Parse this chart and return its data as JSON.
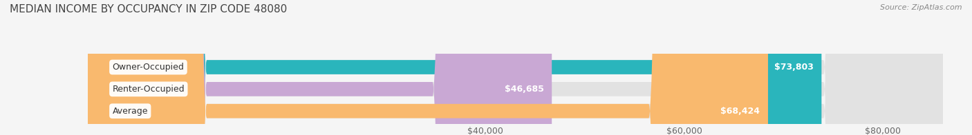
{
  "title": "MEDIAN INCOME BY OCCUPANCY IN ZIP CODE 48080",
  "source": "Source: ZipAtlas.com",
  "categories": [
    "Owner-Occupied",
    "Renter-Occupied",
    "Average"
  ],
  "values": [
    73803,
    46685,
    68424
  ],
  "bar_colors": [
    "#2ab5bc",
    "#c9a8d4",
    "#f9b96e"
  ],
  "bar_labels": [
    "$73,803",
    "$46,685",
    "$68,424"
  ],
  "xlim": [
    0,
    86000
  ],
  "xticks": [
    40000,
    60000,
    80000
  ],
  "xticklabels": [
    "$40,000",
    "$60,000",
    "$80,000"
  ],
  "bg_color": "#f5f5f5",
  "bar_bg_color": "#e2e2e2",
  "title_fontsize": 11,
  "source_fontsize": 8,
  "label_fontsize": 9,
  "tick_fontsize": 9,
  "cat_fontsize": 9
}
